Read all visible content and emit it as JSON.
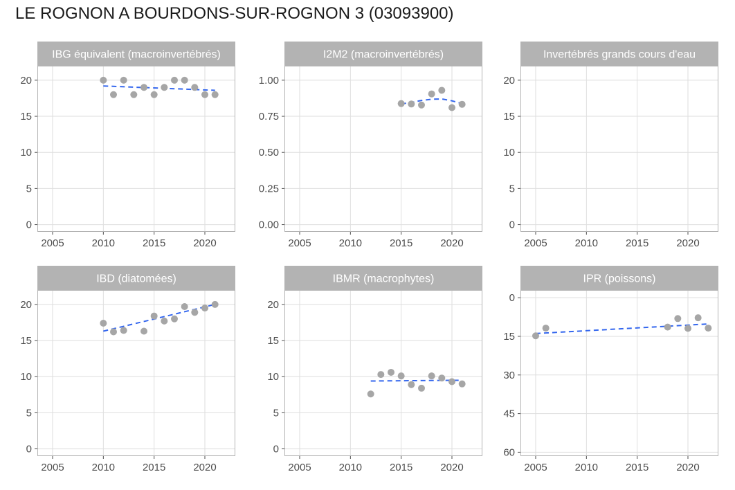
{
  "title": "LE ROGNON A BOURDONS-SUR-ROGNON 3 (03093900)",
  "colors": {
    "strip": "#b3b3b3",
    "panel_border": "#b3b3b3",
    "grid": "#dedede",
    "point": "#a6a6a6",
    "trend": "#3366ee",
    "tick_text": "#4d4d4d"
  },
  "chart_data": [
    {
      "type": "scatter",
      "title": "IBG équivalent (macroinvertébrés)",
      "xlim": [
        2003.5,
        2023
      ],
      "ylim": [
        -1,
        22
      ],
      "xticks": [
        2005,
        2010,
        2015,
        2020
      ],
      "xtick_labels": [
        "2005",
        "2010",
        "2015",
        "2020"
      ],
      "yticks": [
        0,
        5,
        10,
        15,
        20
      ],
      "ytick_labels": [
        "0",
        "5",
        "10",
        "15",
        "20"
      ],
      "y_reversed": false,
      "points": [
        [
          2010,
          20
        ],
        [
          2011,
          18
        ],
        [
          2012,
          20
        ],
        [
          2013,
          18
        ],
        [
          2014,
          19
        ],
        [
          2015,
          18
        ],
        [
          2016,
          19
        ],
        [
          2017,
          20
        ],
        [
          2018,
          20
        ],
        [
          2019,
          19
        ],
        [
          2020,
          18
        ],
        [
          2021,
          18
        ]
      ],
      "trend": [
        [
          2010,
          19.2
        ],
        [
          2021,
          18.6
        ]
      ]
    },
    {
      "type": "scatter",
      "title": "I2M2 (macroinvertébrés)",
      "xlim": [
        2003.5,
        2023
      ],
      "ylim": [
        -0.05,
        1.1
      ],
      "xticks": [
        2005,
        2010,
        2015,
        2020
      ],
      "xtick_labels": [
        "2005",
        "2010",
        "2015",
        "2020"
      ],
      "yticks": [
        0,
        0.25,
        0.5,
        0.75,
        1.0
      ],
      "ytick_labels": [
        "0.00",
        "0.25",
        "0.50",
        "0.75",
        "1.00"
      ],
      "y_reversed": false,
      "points": [
        [
          2015,
          0.838
        ],
        [
          2016,
          0.835
        ],
        [
          2017,
          0.828
        ],
        [
          2018,
          0.905
        ],
        [
          2019,
          0.93
        ],
        [
          2020,
          0.81
        ],
        [
          2021,
          0.833
        ]
      ],
      "trend": [
        [
          2015,
          0.836
        ],
        [
          2016,
          0.846
        ],
        [
          2017,
          0.86
        ],
        [
          2018,
          0.868
        ],
        [
          2019,
          0.87
        ],
        [
          2020,
          0.857
        ],
        [
          2021,
          0.838
        ]
      ]
    },
    {
      "type": "scatter",
      "title": "Invertébrés grands cours d'eau",
      "xlim": [
        2003.5,
        2023
      ],
      "ylim": [
        -1,
        22
      ],
      "xticks": [
        2005,
        2010,
        2015,
        2020
      ],
      "xtick_labels": [
        "2005",
        "2010",
        "2015",
        "2020"
      ],
      "yticks": [
        0,
        5,
        10,
        15,
        20
      ],
      "ytick_labels": [
        "0",
        "5",
        "10",
        "15",
        "20"
      ],
      "y_reversed": false,
      "points": [],
      "trend": []
    },
    {
      "type": "scatter",
      "title": "IBD (diatomées)",
      "xlim": [
        2003.5,
        2023
      ],
      "ylim": [
        -1,
        22
      ],
      "xticks": [
        2005,
        2010,
        2015,
        2020
      ],
      "xtick_labels": [
        "2005",
        "2010",
        "2015",
        "2020"
      ],
      "yticks": [
        0,
        5,
        10,
        15,
        20
      ],
      "ytick_labels": [
        "0",
        "5",
        "10",
        "15",
        "20"
      ],
      "y_reversed": false,
      "points": [
        [
          2010,
          17.4
        ],
        [
          2011,
          16.2
        ],
        [
          2012,
          16.4
        ],
        [
          2014,
          16.3
        ],
        [
          2015,
          18.4
        ],
        [
          2016,
          17.7
        ],
        [
          2017,
          18.0
        ],
        [
          2018,
          19.7
        ],
        [
          2019,
          18.9
        ],
        [
          2020,
          19.5
        ],
        [
          2021,
          20.0
        ]
      ],
      "trend": [
        [
          2010,
          16.3
        ],
        [
          2021,
          20.0
        ]
      ]
    },
    {
      "type": "scatter",
      "title": "IBMR (macrophytes)",
      "xlim": [
        2003.5,
        2023
      ],
      "ylim": [
        -1,
        22
      ],
      "xticks": [
        2005,
        2010,
        2015,
        2020
      ],
      "xtick_labels": [
        "2005",
        "2010",
        "2015",
        "2020"
      ],
      "yticks": [
        0,
        5,
        10,
        15,
        20
      ],
      "ytick_labels": [
        "0",
        "5",
        "10",
        "15",
        "20"
      ],
      "y_reversed": false,
      "points": [
        [
          2012,
          7.6
        ],
        [
          2013,
          10.3
        ],
        [
          2014,
          10.6
        ],
        [
          2015,
          10.1
        ],
        [
          2016,
          8.9
        ],
        [
          2017,
          8.4
        ],
        [
          2018,
          10.1
        ],
        [
          2019,
          9.8
        ],
        [
          2020,
          9.3
        ],
        [
          2021,
          9.0
        ]
      ],
      "trend": [
        [
          2012,
          9.4
        ],
        [
          2021,
          9.5
        ]
      ]
    },
    {
      "type": "scatter",
      "title": "IPR (poissons)",
      "xlim": [
        2003.5,
        2023
      ],
      "ylim": [
        -3,
        61.5
      ],
      "xticks": [
        2005,
        2010,
        2015,
        2020
      ],
      "xtick_labels": [
        "2005",
        "2010",
        "2015",
        "2020"
      ],
      "yticks": [
        0,
        15,
        30,
        45,
        60
      ],
      "ytick_labels": [
        "0",
        "15",
        "30",
        "45",
        "60"
      ],
      "y_reversed": true,
      "points": [
        [
          2005,
          14.8
        ],
        [
          2006,
          11.8
        ],
        [
          2018,
          11.4
        ],
        [
          2019,
          8.1
        ],
        [
          2020,
          11.9
        ],
        [
          2021,
          7.8
        ],
        [
          2022,
          11.8
        ]
      ],
      "trend": [
        [
          2005,
          13.9
        ],
        [
          2022,
          10.2
        ]
      ]
    }
  ]
}
